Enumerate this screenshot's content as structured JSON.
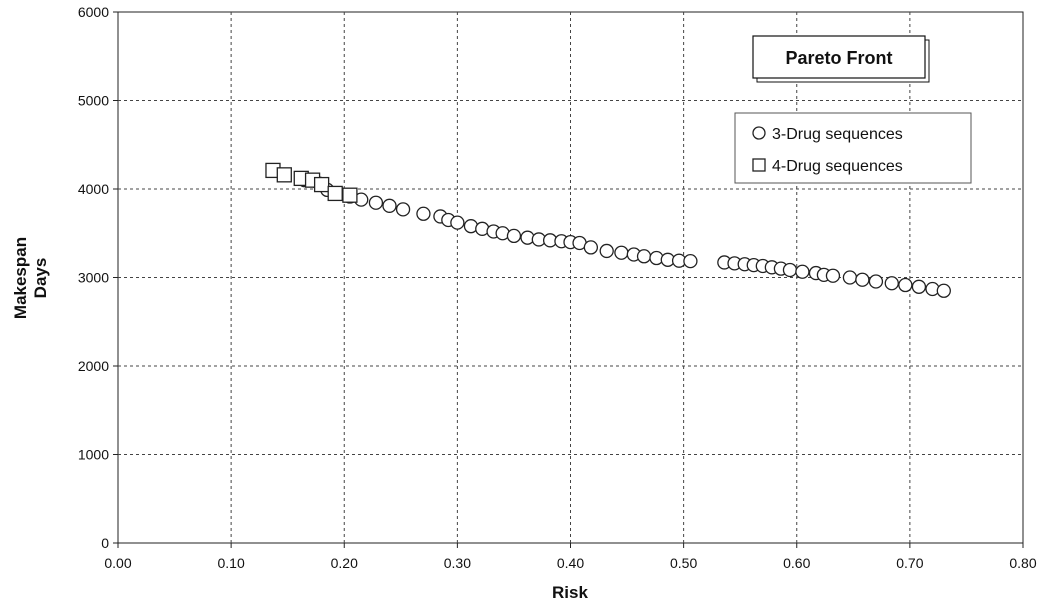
{
  "chart_data": {
    "type": "scatter",
    "title": "Pareto Front",
    "xlabel": "Risk",
    "ylabel": [
      "Makespan",
      "Days"
    ],
    "xlim": [
      0,
      0.8
    ],
    "ylim": [
      0,
      6000
    ],
    "x_ticks": [
      "0.00",
      "0.10",
      "0.20",
      "0.30",
      "0.40",
      "0.50",
      "0.60",
      "0.70",
      "0.80"
    ],
    "y_ticks": [
      "0",
      "1000",
      "2000",
      "3000",
      "4000",
      "5000",
      "6000"
    ],
    "grid": true,
    "legend_position": "top-right",
    "series": [
      {
        "name": "3-Drug sequences",
        "marker": "circle",
        "points": [
          [
            0.165,
            4100
          ],
          [
            0.178,
            4060
          ],
          [
            0.185,
            3990
          ],
          [
            0.195,
            3950
          ],
          [
            0.205,
            3915
          ],
          [
            0.215,
            3880
          ],
          [
            0.228,
            3845
          ],
          [
            0.24,
            3810
          ],
          [
            0.252,
            3770
          ],
          [
            0.27,
            3720
          ],
          [
            0.285,
            3690
          ],
          [
            0.292,
            3650
          ],
          [
            0.3,
            3620
          ],
          [
            0.312,
            3580
          ],
          [
            0.322,
            3550
          ],
          [
            0.332,
            3520
          ],
          [
            0.34,
            3500
          ],
          [
            0.35,
            3470
          ],
          [
            0.362,
            3450
          ],
          [
            0.372,
            3430
          ],
          [
            0.382,
            3420
          ],
          [
            0.392,
            3410
          ],
          [
            0.4,
            3400
          ],
          [
            0.408,
            3390
          ],
          [
            0.418,
            3340
          ],
          [
            0.432,
            3300
          ],
          [
            0.445,
            3280
          ],
          [
            0.456,
            3260
          ],
          [
            0.465,
            3240
          ],
          [
            0.476,
            3220
          ],
          [
            0.486,
            3200
          ],
          [
            0.496,
            3190
          ],
          [
            0.506,
            3185
          ],
          [
            0.536,
            3170
          ],
          [
            0.545,
            3160
          ],
          [
            0.554,
            3150
          ],
          [
            0.562,
            3140
          ],
          [
            0.57,
            3130
          ],
          [
            0.578,
            3115
          ],
          [
            0.586,
            3100
          ],
          [
            0.594,
            3085
          ],
          [
            0.605,
            3065
          ],
          [
            0.617,
            3050
          ],
          [
            0.624,
            3030
          ],
          [
            0.632,
            3020
          ],
          [
            0.647,
            3000
          ],
          [
            0.658,
            2975
          ],
          [
            0.67,
            2955
          ],
          [
            0.684,
            2935
          ],
          [
            0.696,
            2915
          ],
          [
            0.708,
            2895
          ],
          [
            0.72,
            2870
          ],
          [
            0.73,
            2850
          ]
        ]
      },
      {
        "name": "4-Drug sequences",
        "marker": "square",
        "points": [
          [
            0.137,
            4210
          ],
          [
            0.147,
            4160
          ],
          [
            0.162,
            4120
          ],
          [
            0.172,
            4100
          ],
          [
            0.18,
            4050
          ],
          [
            0.192,
            3950
          ],
          [
            0.205,
            3930
          ]
        ]
      }
    ]
  }
}
